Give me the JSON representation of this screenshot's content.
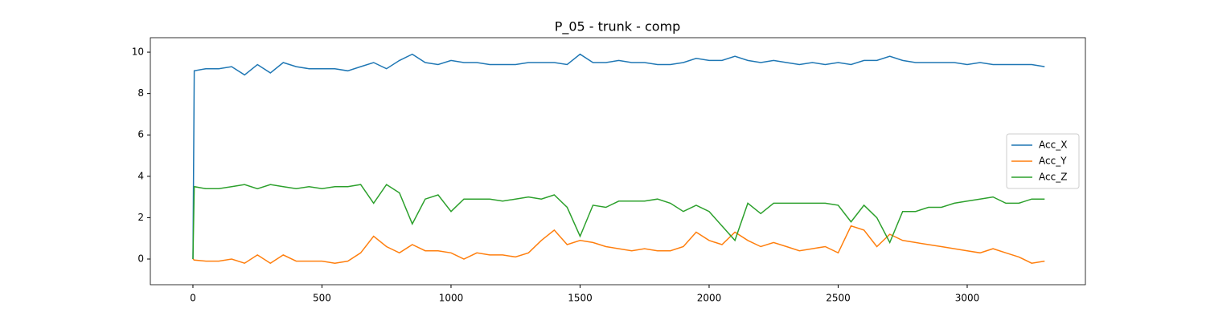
{
  "chart_data": {
    "type": "line",
    "title": "P_05 - trunk - comp",
    "x": [
      0,
      5,
      50,
      100,
      150,
      200,
      250,
      300,
      350,
      400,
      450,
      500,
      550,
      600,
      650,
      700,
      750,
      800,
      850,
      900,
      950,
      1000,
      1050,
      1100,
      1150,
      1200,
      1250,
      1300,
      1350,
      1400,
      1450,
      1500,
      1550,
      1600,
      1650,
      1700,
      1750,
      1800,
      1850,
      1900,
      1950,
      2000,
      2050,
      2100,
      2150,
      2200,
      2250,
      2300,
      2350,
      2400,
      2450,
      2500,
      2550,
      2600,
      2650,
      2700,
      2750,
      2800,
      2850,
      2900,
      2950,
      3000,
      3050,
      3100,
      3150,
      3200,
      3250,
      3300
    ],
    "series": [
      {
        "name": "Acc_X",
        "color": "#1f77b4",
        "values": [
          0,
          9.1,
          9.2,
          9.2,
          9.3,
          8.9,
          9.4,
          9.0,
          9.5,
          9.3,
          9.2,
          9.2,
          9.2,
          9.1,
          9.3,
          9.5,
          9.2,
          9.6,
          9.9,
          9.5,
          9.4,
          9.6,
          9.5,
          9.5,
          9.4,
          9.4,
          9.4,
          9.5,
          9.5,
          9.5,
          9.4,
          9.9,
          9.5,
          9.5,
          9.6,
          9.5,
          9.5,
          9.4,
          9.4,
          9.5,
          9.7,
          9.6,
          9.6,
          9.8,
          9.6,
          9.5,
          9.6,
          9.5,
          9.4,
          9.5,
          9.4,
          9.5,
          9.4,
          9.6,
          9.6,
          9.8,
          9.6,
          9.5,
          9.5,
          9.5,
          9.5,
          9.4,
          9.5,
          9.4,
          9.4,
          9.4,
          9.4,
          9.3
        ]
      },
      {
        "name": "Acc_Y",
        "color": "#ff7f0e",
        "values": [
          0,
          -0.05,
          -0.1,
          -0.1,
          0.0,
          -0.2,
          0.2,
          -0.2,
          0.2,
          -0.1,
          -0.1,
          -0.1,
          -0.2,
          -0.1,
          0.3,
          1.1,
          0.6,
          0.3,
          0.7,
          0.4,
          0.4,
          0.3,
          0.0,
          0.3,
          0.2,
          0.2,
          0.1,
          0.3,
          0.9,
          1.4,
          0.7,
          0.9,
          0.8,
          0.6,
          0.5,
          0.4,
          0.5,
          0.4,
          0.4,
          0.6,
          1.3,
          0.9,
          0.7,
          1.3,
          0.9,
          0.6,
          0.8,
          0.6,
          0.4,
          0.5,
          0.6,
          0.3,
          1.6,
          1.4,
          0.6,
          1.2,
          0.9,
          0.8,
          0.7,
          0.6,
          0.5,
          0.4,
          0.3,
          0.5,
          0.3,
          0.1,
          -0.2,
          -0.1
        ]
      },
      {
        "name": "Acc_Z",
        "color": "#2ca02c",
        "values": [
          0,
          3.5,
          3.4,
          3.4,
          3.5,
          3.6,
          3.4,
          3.6,
          3.5,
          3.4,
          3.5,
          3.4,
          3.5,
          3.5,
          3.6,
          2.7,
          3.6,
          3.2,
          1.7,
          2.9,
          3.1,
          2.3,
          2.9,
          2.9,
          2.9,
          2.8,
          2.9,
          3.0,
          2.9,
          3.1,
          2.5,
          1.1,
          2.6,
          2.5,
          2.8,
          2.8,
          2.8,
          2.9,
          2.7,
          2.3,
          2.6,
          2.3,
          1.6,
          0.9,
          2.7,
          2.2,
          2.7,
          2.7,
          2.7,
          2.7,
          2.7,
          2.6,
          1.8,
          2.6,
          2.0,
          0.8,
          2.3,
          2.3,
          2.5,
          2.5,
          2.7,
          2.8,
          2.9,
          3.0,
          2.7,
          2.7,
          2.9,
          2.9
        ]
      }
    ],
    "xlim": [
      -165,
      3458
    ],
    "ylim": [
      -1.24,
      10.7
    ],
    "xticks": [
      0,
      500,
      1000,
      1500,
      2000,
      2500,
      3000
    ],
    "yticks": [
      0,
      2,
      4,
      6,
      8,
      10
    ],
    "grid": false,
    "legend": "center right"
  }
}
